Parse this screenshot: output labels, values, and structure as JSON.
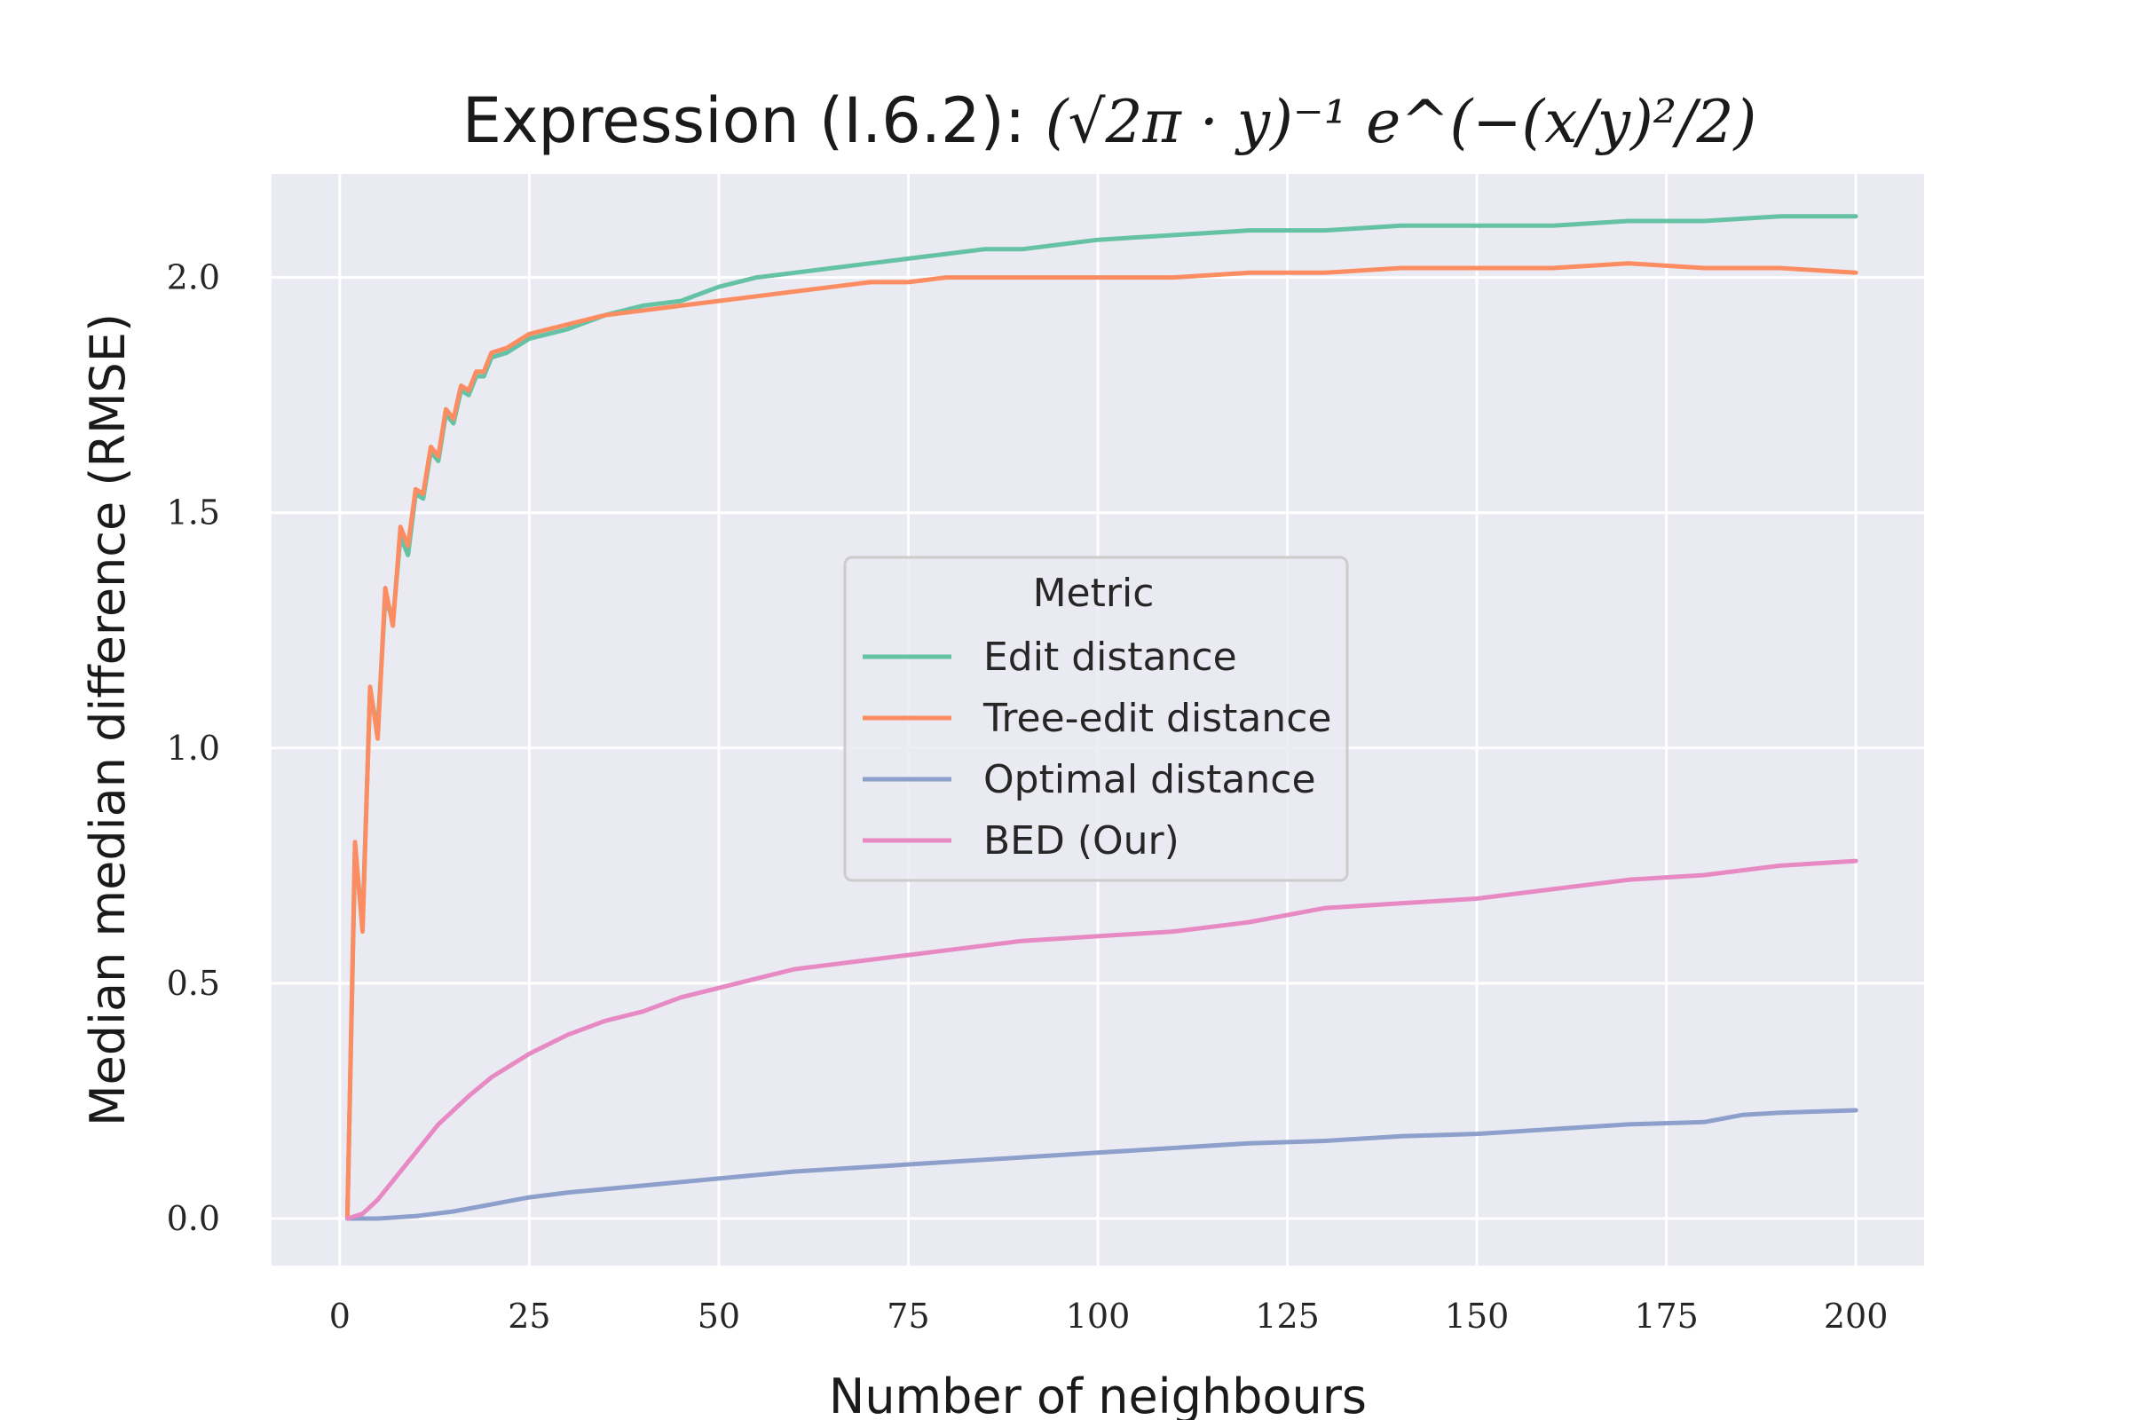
{
  "chart_data": {
    "type": "line",
    "title": "Expression (I.6.2): ",
    "title_math": "(√2π · y)⁻¹ e^(−(x/y)²/2)",
    "xlabel": "Number of neighbours",
    "ylabel": "Median median difference (RMSE)",
    "xlim": [
      -9,
      209
    ],
    "ylim": [
      -0.1,
      2.22
    ],
    "xticks": [
      0,
      25,
      50,
      75,
      100,
      125,
      150,
      175,
      200
    ],
    "xtick_labels": [
      "0",
      "25",
      "50",
      "75",
      "100",
      "125",
      "150",
      "175",
      "200"
    ],
    "yticks": [
      0.0,
      0.5,
      1.0,
      1.5,
      2.0
    ],
    "ytick_labels": [
      "0.0",
      "0.5",
      "1.0",
      "1.5",
      "2.0"
    ],
    "grid": true,
    "legend": {
      "title": "Metric",
      "position": "center"
    },
    "series": [
      {
        "name": "Edit distance",
        "color": "#66c2a5",
        "points": [
          [
            1,
            0
          ],
          [
            2,
            0.78
          ],
          [
            3,
            0.63
          ],
          [
            4,
            1.12
          ],
          [
            5,
            1.04
          ],
          [
            6,
            1.32
          ],
          [
            7,
            1.27
          ],
          [
            8,
            1.45
          ],
          [
            9,
            1.41
          ],
          [
            10,
            1.54
          ],
          [
            11,
            1.53
          ],
          [
            12,
            1.63
          ],
          [
            13,
            1.61
          ],
          [
            14,
            1.71
          ],
          [
            15,
            1.69
          ],
          [
            16,
            1.76
          ],
          [
            17,
            1.75
          ],
          [
            18,
            1.79
          ],
          [
            19,
            1.79
          ],
          [
            20,
            1.83
          ],
          [
            22,
            1.84
          ],
          [
            25,
            1.87
          ],
          [
            30,
            1.89
          ],
          [
            35,
            1.92
          ],
          [
            40,
            1.94
          ],
          [
            45,
            1.95
          ],
          [
            50,
            1.98
          ],
          [
            55,
            2.0
          ],
          [
            60,
            2.01
          ],
          [
            65,
            2.02
          ],
          [
            70,
            2.03
          ],
          [
            75,
            2.04
          ],
          [
            80,
            2.05
          ],
          [
            85,
            2.06
          ],
          [
            90,
            2.06
          ],
          [
            95,
            2.07
          ],
          [
            100,
            2.08
          ],
          [
            110,
            2.09
          ],
          [
            120,
            2.1
          ],
          [
            130,
            2.1
          ],
          [
            140,
            2.11
          ],
          [
            150,
            2.11
          ],
          [
            160,
            2.11
          ],
          [
            170,
            2.12
          ],
          [
            180,
            2.12
          ],
          [
            190,
            2.13
          ],
          [
            200,
            2.13
          ]
        ]
      },
      {
        "name": "Tree-edit distance",
        "color": "#fc8d62",
        "points": [
          [
            1,
            0
          ],
          [
            2,
            0.8
          ],
          [
            3,
            0.61
          ],
          [
            4,
            1.13
          ],
          [
            5,
            1.02
          ],
          [
            6,
            1.34
          ],
          [
            7,
            1.26
          ],
          [
            8,
            1.47
          ],
          [
            9,
            1.43
          ],
          [
            10,
            1.55
          ],
          [
            11,
            1.54
          ],
          [
            12,
            1.64
          ],
          [
            13,
            1.62
          ],
          [
            14,
            1.72
          ],
          [
            15,
            1.7
          ],
          [
            16,
            1.77
          ],
          [
            17,
            1.76
          ],
          [
            18,
            1.8
          ],
          [
            19,
            1.8
          ],
          [
            20,
            1.84
          ],
          [
            22,
            1.85
          ],
          [
            25,
            1.88
          ],
          [
            30,
            1.9
          ],
          [
            35,
            1.92
          ],
          [
            40,
            1.93
          ],
          [
            45,
            1.94
          ],
          [
            50,
            1.95
          ],
          [
            55,
            1.96
          ],
          [
            60,
            1.97
          ],
          [
            65,
            1.98
          ],
          [
            70,
            1.99
          ],
          [
            75,
            1.99
          ],
          [
            80,
            2.0
          ],
          [
            90,
            2.0
          ],
          [
            100,
            2.0
          ],
          [
            110,
            2.0
          ],
          [
            120,
            2.01
          ],
          [
            130,
            2.01
          ],
          [
            140,
            2.02
          ],
          [
            150,
            2.02
          ],
          [
            160,
            2.02
          ],
          [
            170,
            2.03
          ],
          [
            180,
            2.02
          ],
          [
            190,
            2.02
          ],
          [
            200,
            2.01
          ]
        ]
      },
      {
        "name": "Optimal distance",
        "color": "#8da0cb",
        "points": [
          [
            1,
            0
          ],
          [
            5,
            0
          ],
          [
            10,
            0.005
          ],
          [
            15,
            0.015
          ],
          [
            20,
            0.03
          ],
          [
            25,
            0.045
          ],
          [
            30,
            0.055
          ],
          [
            40,
            0.07
          ],
          [
            50,
            0.085
          ],
          [
            60,
            0.1
          ],
          [
            70,
            0.11
          ],
          [
            80,
            0.12
          ],
          [
            90,
            0.13
          ],
          [
            100,
            0.14
          ],
          [
            110,
            0.15
          ],
          [
            120,
            0.16
          ],
          [
            130,
            0.165
          ],
          [
            140,
            0.175
          ],
          [
            150,
            0.18
          ],
          [
            160,
            0.19
          ],
          [
            170,
            0.2
          ],
          [
            180,
            0.205
          ],
          [
            185,
            0.22
          ],
          [
            190,
            0.225
          ],
          [
            200,
            0.23
          ]
        ]
      },
      {
        "name": "BED (Our)",
        "color": "#e78ac3",
        "points": [
          [
            1,
            0
          ],
          [
            3,
            0.01
          ],
          [
            5,
            0.04
          ],
          [
            7,
            0.08
          ],
          [
            9,
            0.12
          ],
          [
            11,
            0.16
          ],
          [
            13,
            0.2
          ],
          [
            15,
            0.23
          ],
          [
            17,
            0.26
          ],
          [
            20,
            0.3
          ],
          [
            25,
            0.35
          ],
          [
            30,
            0.39
          ],
          [
            35,
            0.42
          ],
          [
            40,
            0.44
          ],
          [
            45,
            0.47
          ],
          [
            50,
            0.49
          ],
          [
            55,
            0.51
          ],
          [
            60,
            0.53
          ],
          [
            65,
            0.54
          ],
          [
            70,
            0.55
          ],
          [
            75,
            0.56
          ],
          [
            80,
            0.57
          ],
          [
            90,
            0.59
          ],
          [
            100,
            0.6
          ],
          [
            110,
            0.61
          ],
          [
            120,
            0.63
          ],
          [
            130,
            0.66
          ],
          [
            140,
            0.67
          ],
          [
            150,
            0.68
          ],
          [
            160,
            0.7
          ],
          [
            170,
            0.72
          ],
          [
            180,
            0.73
          ],
          [
            190,
            0.75
          ],
          [
            200,
            0.76
          ]
        ]
      }
    ]
  }
}
